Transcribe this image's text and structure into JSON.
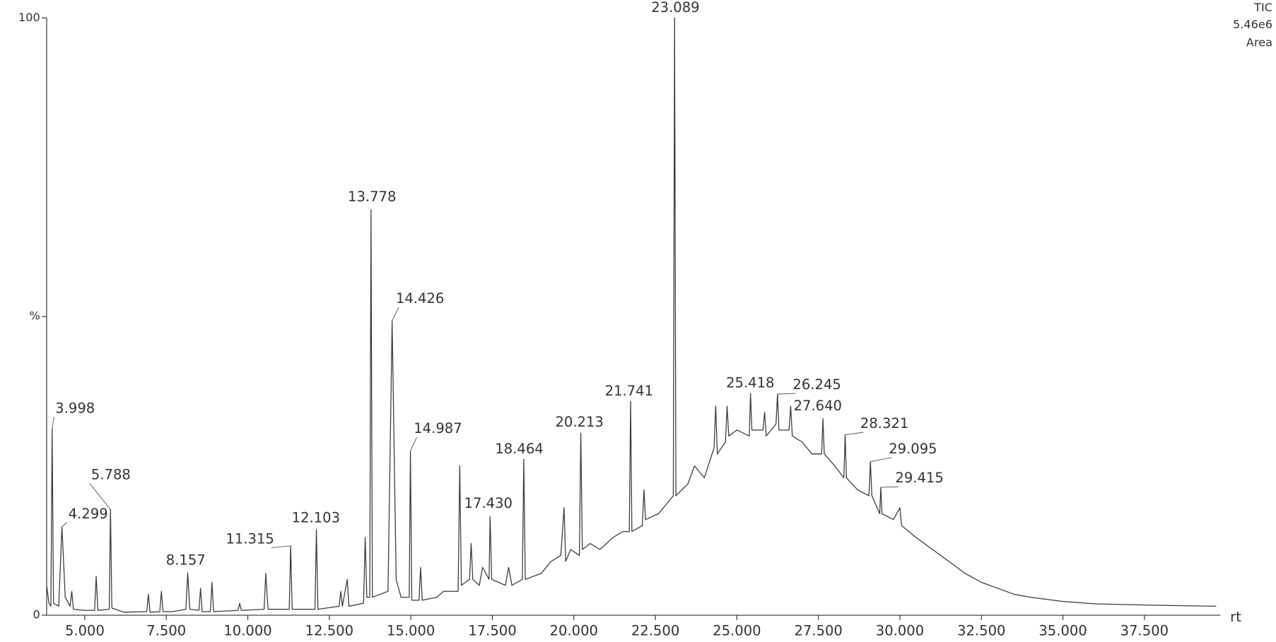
{
  "chart_data": {
    "type": "line",
    "trace_label": "TIC",
    "scale_label": "5.46e6",
    "mode_label": "Area",
    "x_label": "rt",
    "color": "#3a3a3a",
    "xlim": [
      3.83,
      39.83
    ],
    "ylim": [
      0,
      100
    ],
    "xticks": [
      {
        "value": 5,
        "label": "5.000"
      },
      {
        "value": 7.5,
        "label": "7.500"
      },
      {
        "value": 10,
        "label": "10.000"
      },
      {
        "value": 12.5,
        "label": "12.500"
      },
      {
        "value": 15,
        "label": "15.000"
      },
      {
        "value": 17.5,
        "label": "17.500"
      },
      {
        "value": 20,
        "label": "20.000"
      },
      {
        "value": 22.5,
        "label": "22.500"
      },
      {
        "value": 25,
        "label": "25.000"
      },
      {
        "value": 27.5,
        "label": "27.500"
      },
      {
        "value": 30,
        "label": "30.000"
      },
      {
        "value": 32.5,
        "label": "32.500"
      },
      {
        "value": 35,
        "label": "35.000"
      },
      {
        "value": 37.5,
        "label": "37.500"
      }
    ],
    "yticks": [
      0,
      {
        "value": 50,
        "label": "%"
      },
      100
    ],
    "x": [
      3.83,
      3.9,
      3.96,
      3.998,
      4.04,
      4.2,
      4.299,
      4.4,
      4.55,
      4.6,
      4.65,
      5.0,
      5.3,
      5.35,
      5.4,
      5.75,
      5.788,
      5.83,
      6.2,
      6.9,
      6.95,
      7.0,
      7.3,
      7.35,
      7.4,
      7.7,
      8.1,
      8.157,
      8.22,
      8.5,
      8.55,
      8.6,
      8.85,
      8.9,
      8.95,
      9.7,
      9.75,
      9.8,
      10.5,
      10.55,
      10.62,
      11.27,
      11.315,
      11.36,
      12.06,
      12.103,
      12.15,
      12.8,
      12.85,
      12.9,
      13.05,
      13.1,
      13.55,
      13.6,
      13.65,
      13.74,
      13.778,
      13.82,
      14.3,
      14.426,
      14.55,
      14.7,
      14.95,
      14.987,
      15.03,
      15.25,
      15.3,
      15.35,
      15.8,
      16.0,
      16.45,
      16.5,
      16.55,
      16.8,
      16.85,
      16.9,
      17.1,
      17.2,
      17.4,
      17.43,
      17.48,
      17.9,
      18.0,
      18.1,
      18.42,
      18.464,
      18.51,
      19.0,
      19.3,
      19.6,
      19.7,
      19.75,
      19.9,
      20.17,
      20.213,
      20.26,
      20.5,
      20.8,
      21.2,
      21.5,
      21.7,
      21.741,
      21.78,
      22.1,
      22.15,
      22.2,
      22.6,
      22.9,
      23.05,
      23.089,
      23.13,
      23.5,
      23.7,
      24.0,
      24.3,
      24.35,
      24.4,
      24.65,
      24.7,
      24.75,
      25.0,
      25.38,
      25.418,
      25.46,
      25.8,
      25.85,
      25.9,
      26.2,
      26.245,
      26.29,
      26.6,
      26.65,
      26.7,
      27.0,
      27.3,
      27.6,
      27.64,
      27.68,
      28.0,
      28.28,
      28.321,
      28.36,
      28.7,
      29.05,
      29.095,
      29.14,
      29.38,
      29.415,
      29.45,
      29.8,
      30.0,
      30.05,
      30.5,
      31.0,
      31.5,
      32.0,
      32.5,
      33.0,
      33.5,
      34.0,
      35.0,
      36.0,
      37.5,
      38.5,
      39.7
    ],
    "values": [
      5,
      2,
      1.5,
      31.2,
      2,
      1.5,
      14.8,
      3,
      1.5,
      4,
      1,
      0.8,
      0.8,
      6.5,
      0.8,
      1,
      17.7,
      1.2,
      0.5,
      0.6,
      3.5,
      0.5,
      0.6,
      4,
      0.6,
      0.6,
      1,
      7.1,
      1,
      0.8,
      4.5,
      0.6,
      0.6,
      5.5,
      0.6,
      0.8,
      2,
      0.8,
      1,
      7,
      1,
      1,
      11.6,
      1,
      1,
      14.3,
      1,
      1.5,
      4,
      1.5,
      6,
      1.5,
      2,
      13,
      3,
      3,
      67.9,
      3,
      4,
      49.3,
      6,
      3,
      3,
      27.5,
      2.5,
      2.5,
      8,
      2.5,
      3,
      4,
      4,
      25,
      5,
      6,
      12,
      6,
      5,
      8,
      6,
      16.5,
      6,
      5,
      8,
      5,
      6,
      26.1,
      6,
      7,
      9,
      10,
      18,
      9,
      11,
      10,
      30.5,
      11,
      12,
      11,
      13,
      14,
      14,
      35.8,
      14,
      15,
      21,
      16,
      17,
      19,
      20,
      100,
      20,
      22,
      25,
      23,
      28,
      35,
      27,
      29,
      35,
      30,
      31,
      30,
      37.1,
      31,
      31,
      34,
      30,
      32,
      37.0,
      31,
      31,
      35,
      30,
      29,
      27,
      27,
      32.9,
      27,
      25,
      23,
      30.2,
      23,
      21,
      20,
      25.7,
      20,
      17,
      21.4,
      17,
      16,
      18,
      15,
      13,
      11,
      9,
      7,
      5.5,
      4.5,
      3.5,
      3,
      2.3,
      1.9,
      1.7,
      1.6,
      1.5
    ],
    "annotations": [
      {
        "text": "3.998",
        "x": 3.998,
        "y": 31.2
      },
      {
        "text": "4.299",
        "x": 4.299,
        "y": 14.8
      },
      {
        "text": "5.788",
        "x": 5.788,
        "y": 17.7
      },
      {
        "text": "8.157",
        "x": 8.157,
        "y": 7.1
      },
      {
        "text": "11.315",
        "x": 11.315,
        "y": 11.6
      },
      {
        "text": "12.103",
        "x": 12.103,
        "y": 14.3
      },
      {
        "text": "13.778",
        "x": 13.778,
        "y": 67.9
      },
      {
        "text": "14.426",
        "x": 14.426,
        "y": 49.3
      },
      {
        "text": "14.987",
        "x": 14.987,
        "y": 27.5
      },
      {
        "text": "17.430",
        "x": 17.43,
        "y": 16.5
      },
      {
        "text": "18.464",
        "x": 18.464,
        "y": 26.1
      },
      {
        "text": "20.213",
        "x": 20.213,
        "y": 30.5
      },
      {
        "text": "21.741",
        "x": 21.741,
        "y": 35.8
      },
      {
        "text": "23.089",
        "x": 23.089,
        "y": 100
      },
      {
        "text": "25.418",
        "x": 25.418,
        "y": 37.1
      },
      {
        "text": "26.245",
        "x": 26.245,
        "y": 37.0
      },
      {
        "text": "27.640",
        "x": 27.64,
        "y": 32.9
      },
      {
        "text": "28.321",
        "x": 28.321,
        "y": 30.2
      },
      {
        "text": "29.095",
        "x": 29.095,
        "y": 25.7
      },
      {
        "text": "29.415",
        "x": 29.415,
        "y": 21.4
      }
    ]
  }
}
